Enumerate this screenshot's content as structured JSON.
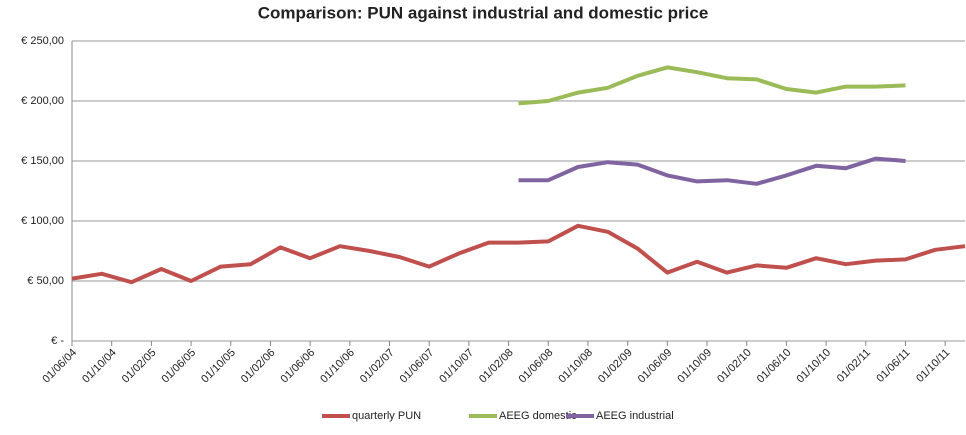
{
  "chart_data": {
    "type": "line",
    "title": "Comparison: PUN against industrial and domestic price",
    "xlim": [
      "01/06/04",
      "01/12/11"
    ],
    "xticks": [
      "01/06/04",
      "01/10/04",
      "01/02/05",
      "01/06/05",
      "01/10/05",
      "01/02/06",
      "01/06/06",
      "01/10/06",
      "01/02/07",
      "01/06/07",
      "01/10/07",
      "01/02/08",
      "01/06/08",
      "01/10/08",
      "01/02/09",
      "01/06/09",
      "01/10/09",
      "01/02/10",
      "01/06/10",
      "01/10/10",
      "01/02/11",
      "01/06/11",
      "01/10/11"
    ],
    "ylim": [
      0,
      250
    ],
    "yticks": [
      {
        "value": 0,
        "label": "€ -"
      },
      {
        "value": 50,
        "label": "€ 50,00"
      },
      {
        "value": 100,
        "label": "€ 100,00"
      },
      {
        "value": 150,
        "label": "€ 150,00"
      },
      {
        "value": 200,
        "label": "€ 200,00"
      },
      {
        "value": 250,
        "label": "€ 250,00"
      }
    ],
    "grid": true,
    "legend": "bottom",
    "series": [
      {
        "name": "quarterly PUN",
        "color": "#c0504d",
        "x": [
          "01/06/04",
          "01/09/04",
          "01/12/04",
          "01/03/05",
          "01/06/05",
          "01/09/05",
          "01/12/05",
          "01/03/06",
          "01/06/06",
          "01/09/06",
          "01/12/06",
          "01/03/07",
          "01/06/07",
          "01/09/07",
          "01/12/07",
          "01/03/08",
          "01/06/08",
          "01/09/08",
          "01/12/08",
          "01/03/09",
          "01/06/09",
          "01/09/09",
          "01/12/09",
          "01/03/10",
          "01/06/10",
          "01/09/10",
          "01/12/10",
          "01/03/11",
          "01/06/11",
          "01/09/11",
          "01/12/11"
        ],
        "values": [
          52,
          56,
          49,
          60,
          50,
          62,
          64,
          78,
          69,
          79,
          75,
          70,
          62,
          73,
          82,
          82,
          83,
          96,
          91,
          77,
          57,
          66,
          57,
          63,
          61,
          69,
          64,
          67,
          68,
          76,
          79
        ]
      },
      {
        "name": "AEEG domestic",
        "color": "#9bbb59",
        "x": [
          "01/03/08",
          "01/06/08",
          "01/09/08",
          "01/12/08",
          "01/03/09",
          "01/06/09",
          "01/09/09",
          "01/12/09",
          "01/03/10",
          "01/06/10",
          "01/09/10",
          "01/12/10",
          "01/03/11",
          "01/06/11"
        ],
        "values": [
          198,
          200,
          207,
          211,
          221,
          228,
          224,
          219,
          218,
          210,
          207,
          212,
          212,
          213
        ]
      },
      {
        "name": "AEEG industrial",
        "color": "#8064a2",
        "x": [
          "01/03/08",
          "01/06/08",
          "01/09/08",
          "01/12/08",
          "01/03/09",
          "01/06/09",
          "01/09/09",
          "01/12/09",
          "01/03/10",
          "01/06/10",
          "01/09/10",
          "01/12/10",
          "01/03/11",
          "01/06/11"
        ],
        "values": [
          134,
          134,
          145,
          149,
          147,
          138,
          133,
          134,
          131,
          138,
          146,
          144,
          152,
          150
        ]
      }
    ]
  }
}
